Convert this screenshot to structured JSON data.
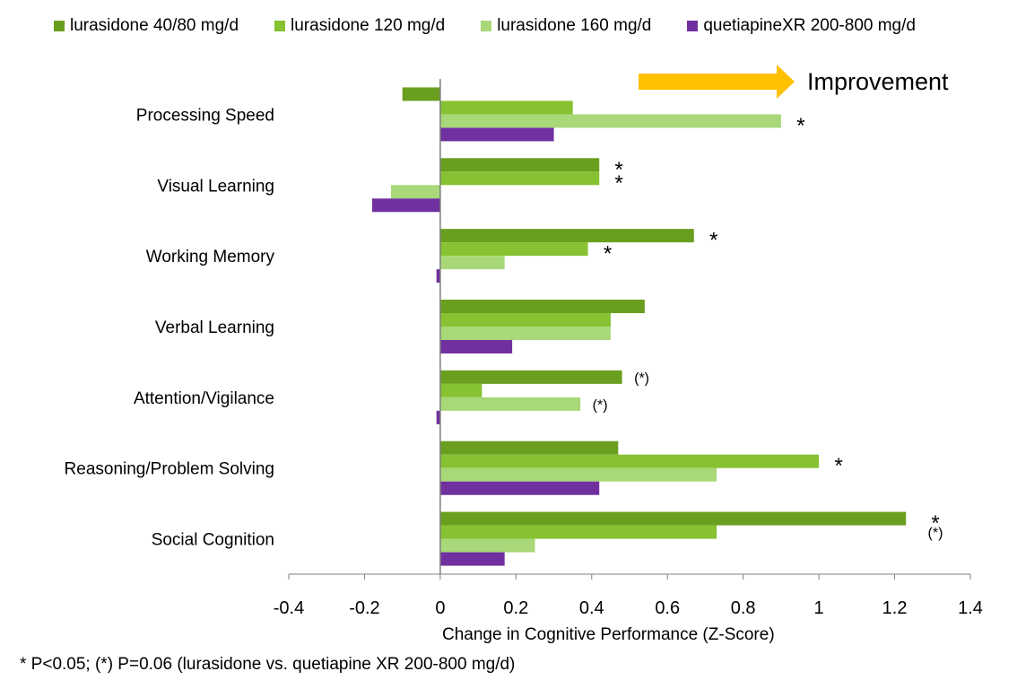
{
  "legend": [
    {
      "label": "lurasidone 40/80 mg/d",
      "color": "#6a9e1f"
    },
    {
      "label": "lurasidone 120 mg/d",
      "color": "#86c231"
    },
    {
      "label": "lurasidone 160 mg/d",
      "color": "#a8d878"
    },
    {
      "label": "quetiapineXR 200-800 mg/d",
      "color": "#7030a0"
    }
  ],
  "improvement": {
    "label": "Improvement",
    "arrow_color": "#ffc000"
  },
  "footnote": "* P<0.05; (*) P=0.06  (lurasidone vs. quetiapine XR 200-800 mg/d)",
  "chart_data": {
    "type": "bar",
    "orientation": "horizontal",
    "categories": [
      "Processing Speed",
      "Visual Learning",
      "Working Memory",
      "Verbal Learning",
      "Attention/Vigilance",
      "Reasoning/Problem Solving",
      "Social Cognition"
    ],
    "series": [
      {
        "name": "lurasidone 40/80 mg/d",
        "color": "#6a9e1f",
        "values": [
          -0.1,
          0.42,
          0.67,
          0.54,
          0.48,
          0.47,
          1.23
        ]
      },
      {
        "name": "lurasidone 120 mg/d",
        "color": "#86c231",
        "values": [
          0.35,
          0.42,
          0.39,
          0.45,
          0.11,
          1.0,
          0.73
        ]
      },
      {
        "name": "lurasidone 160 mg/d",
        "color": "#a8d878",
        "values": [
          0.9,
          -0.13,
          0.17,
          0.45,
          0.37,
          0.73,
          0.25
        ]
      },
      {
        "name": "quetiapineXR 200-800 mg/d",
        "color": "#7030a0",
        "values": [
          0.3,
          -0.18,
          -0.01,
          0.19,
          -0.01,
          0.42,
          0.17
        ]
      }
    ],
    "annotations": [
      {
        "category": "Processing Speed",
        "series": "lurasidone 160 mg/d",
        "text": "*"
      },
      {
        "category": "Visual Learning",
        "series": "lurasidone 40/80 mg/d",
        "text": "*"
      },
      {
        "category": "Visual Learning",
        "series": "lurasidone 120 mg/d",
        "text": "*"
      },
      {
        "category": "Working Memory",
        "series": "lurasidone 40/80 mg/d",
        "text": "*"
      },
      {
        "category": "Working Memory",
        "series": "lurasidone 120 mg/d",
        "text": "*"
      },
      {
        "category": "Attention/Vigilance",
        "series": "lurasidone 40/80 mg/d",
        "text": "(*)"
      },
      {
        "category": "Attention/Vigilance",
        "series": "lurasidone 160 mg/d",
        "text": "(*)"
      },
      {
        "category": "Reasoning/Problem Solving",
        "series": "lurasidone 120 mg/d",
        "text": "*"
      },
      {
        "category": "Social Cognition",
        "series": "lurasidone 40/80 mg/d",
        "text": "*"
      },
      {
        "category": "Social Cognition",
        "series": "lurasidone 120 mg/d",
        "text": "(*)"
      }
    ],
    "xlabel": "Change in Cognitive Performance (Z-Score)",
    "ylabel": "",
    "xlim": [
      -0.4,
      1.4
    ],
    "xticks": [
      "-0.4",
      "-0.2",
      "0",
      "0.2",
      "0.4",
      "0.6",
      "0.8",
      "1",
      "1.2",
      "1.4"
    ],
    "grid": false,
    "legend_position": "top"
  }
}
